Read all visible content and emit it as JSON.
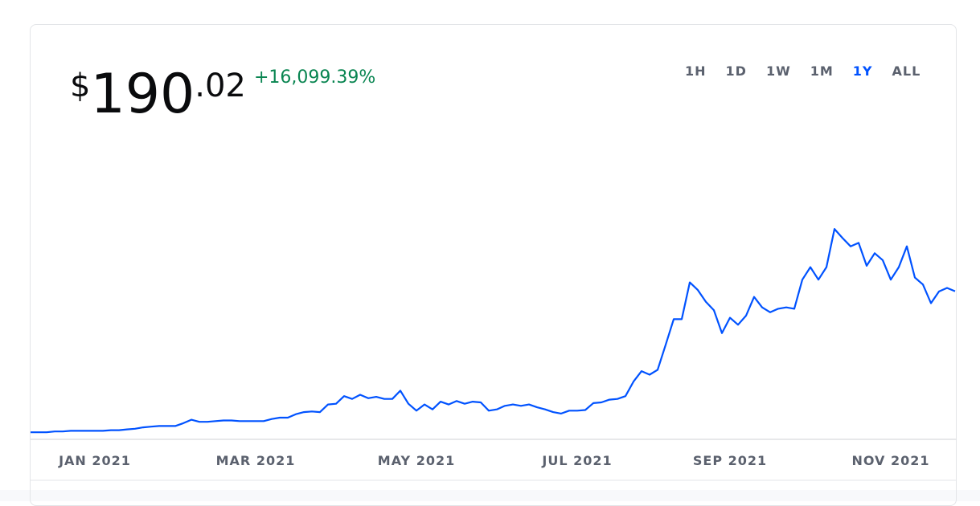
{
  "price": {
    "symbol": "$",
    "whole": "190",
    "fraction": ".02"
  },
  "change": "+16,099.39%",
  "ranges": [
    "1H",
    "1D",
    "1W",
    "1M",
    "1Y",
    "ALL"
  ],
  "selected_range": "1Y",
  "chart_data": {
    "type": "line",
    "series": [
      {
        "color": "#0052ff",
        "values": [
          0.9,
          0.9,
          0.9,
          1.9,
          1.9,
          2.8,
          2.8,
          2.8,
          2.8,
          2.8,
          3.7,
          3.7,
          4.7,
          5.6,
          7.4,
          8.4,
          9.3,
          9.3,
          9.3,
          13.0,
          17.7,
          14.9,
          14.9,
          15.8,
          16.7,
          16.7,
          15.8,
          15.8,
          15.8,
          15.8,
          18.6,
          20.5,
          20.5,
          25.1,
          27.9,
          28.8,
          27.9,
          38.1,
          39.1,
          49.3,
          45.6,
          51.2,
          46.5,
          48.4,
          45.6,
          45.6,
          56.7,
          39.1,
          29.8,
          38.1,
          31.6,
          41.9,
          38.1,
          42.8,
          39.1,
          41.9,
          40.9,
          29.8,
          31.6,
          36.3,
          38.1,
          36.3,
          38.1,
          34.4,
          31.6,
          27.9,
          26.0,
          29.8,
          29.8,
          30.7,
          40.0,
          40.9,
          44.6,
          45.6,
          49.3,
          68.8,
          82.8,
          78.1,
          84.6,
          118.1,
          152.5,
          152.5,
          201.8,
          191.6,
          175.8,
          164.6,
          133.9,
          154.4,
          145.1,
          157.2,
          182.3,
          168.3,
          161.8,
          166.5,
          168.3,
          166.5,
          205.5,
          222.3,
          205.5,
          222.3,
          273.4,
          261.3,
          250.2,
          254.8,
          224.1,
          240.9,
          231.6,
          205.5,
          222.3,
          250.2,
          208.3,
          199.0,
          173.9,
          189.7,
          194.4,
          190.0
        ]
      }
    ],
    "xlim": [
      0,
      115
    ],
    "ylim": [
      0,
      280
    ],
    "xticks": [
      {
        "value": 8,
        "label": "JAN 2021"
      },
      {
        "value": 28,
        "label": "MAR 2021"
      },
      {
        "value": 48,
        "label": "MAY 2021"
      },
      {
        "value": 68,
        "label": "JUL 2021"
      },
      {
        "value": 87,
        "label": "SEP 2021"
      },
      {
        "value": 107,
        "label": "NOV 2021"
      }
    ]
  }
}
